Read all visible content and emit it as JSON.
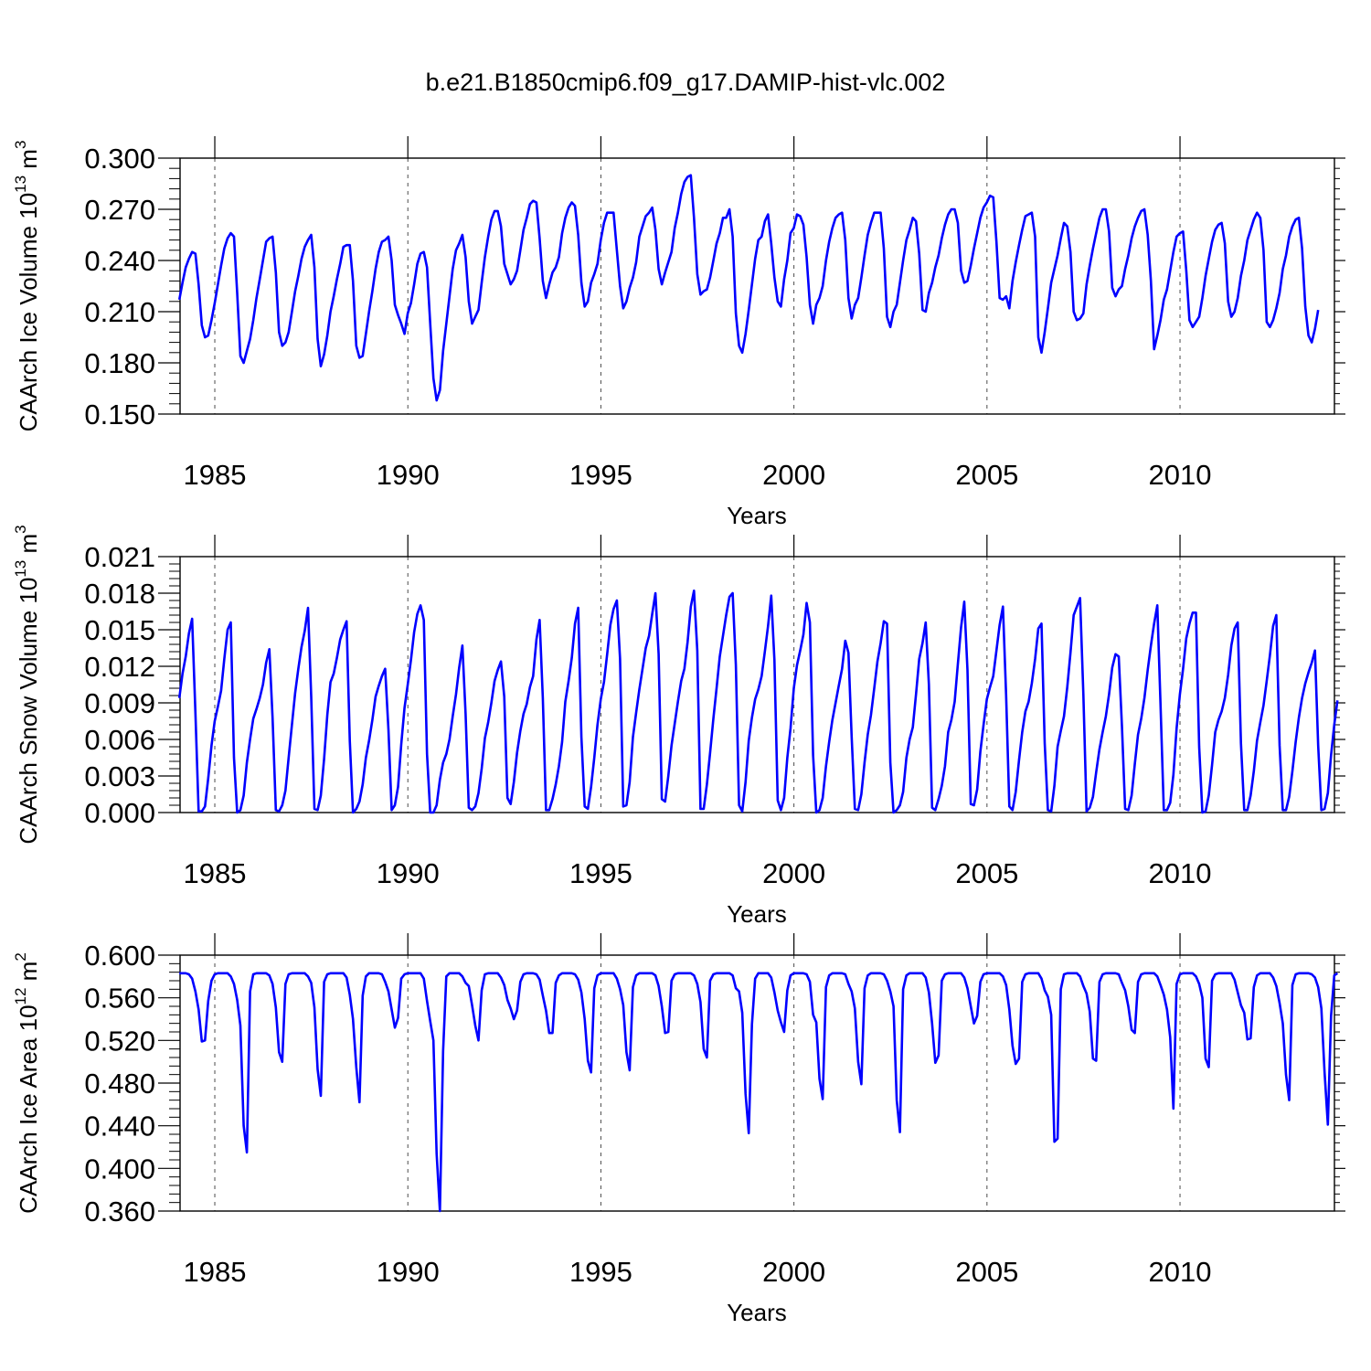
{
  "figure_title": "b.e21.B1850cmip6.f09_g17.DAMIP-hist-vlc.002",
  "colors": {
    "line": "#0000ff",
    "axes": "#000000",
    "grid": "#000000",
    "background": "#ffffff"
  },
  "chart_data": [
    {
      "type": "line",
      "name": "ice-volume",
      "ylabel": "CAArch Ice Volume",
      "ylabel_unit_base": "10",
      "ylabel_unit_exp": "13",
      "ylabel_unit_tail": "m",
      "ylabel_unit_tail_exp": "3",
      "xlabel": "Years",
      "ylim": [
        0.15,
        0.3
      ],
      "xlim": [
        1984.1,
        2014.0
      ],
      "yticks": [
        "0.150",
        "0.180",
        "0.210",
        "0.240",
        "0.270",
        "0.300"
      ],
      "xticks": [
        "1985",
        "1990",
        "1995",
        "2000",
        "2005",
        "2010"
      ],
      "vgrid_years": [
        1985,
        1990,
        1995,
        2000,
        2005,
        2010
      ],
      "series_start": 1984.08,
      "series_step": 0.08333,
      "values": [
        0.217,
        0.227,
        0.236,
        0.241,
        0.245,
        0.244,
        0.226,
        0.202,
        0.195,
        0.196,
        0.205,
        0.215,
        0.226,
        0.237,
        0.247,
        0.253,
        0.256,
        0.254,
        0.221,
        0.184,
        0.18,
        0.187,
        0.194,
        0.205,
        0.218,
        0.229,
        0.24,
        0.251,
        0.253,
        0.254,
        0.233,
        0.198,
        0.19,
        0.192,
        0.198,
        0.21,
        0.222,
        0.231,
        0.241,
        0.248,
        0.252,
        0.255,
        0.236,
        0.194,
        0.178,
        0.185,
        0.196,
        0.21,
        0.219,
        0.229,
        0.238,
        0.248,
        0.249,
        0.249,
        0.228,
        0.19,
        0.183,
        0.184,
        0.197,
        0.21,
        0.222,
        0.235,
        0.245,
        0.251,
        0.252,
        0.254,
        0.24,
        0.214,
        0.208,
        0.203,
        0.197,
        0.209,
        0.215,
        0.226,
        0.238,
        0.244,
        0.245,
        0.236,
        0.203,
        0.171,
        0.158,
        0.164,
        0.187,
        0.203,
        0.219,
        0.235,
        0.246,
        0.25,
        0.255,
        0.242,
        0.216,
        0.203,
        0.207,
        0.211,
        0.227,
        0.242,
        0.254,
        0.264,
        0.269,
        0.269,
        0.26,
        0.238,
        0.232,
        0.226,
        0.229,
        0.234,
        0.246,
        0.258,
        0.265,
        0.273,
        0.275,
        0.274,
        0.253,
        0.228,
        0.218,
        0.226,
        0.233,
        0.236,
        0.242,
        0.256,
        0.265,
        0.271,
        0.274,
        0.272,
        0.255,
        0.227,
        0.213,
        0.216,
        0.227,
        0.232,
        0.238,
        0.252,
        0.262,
        0.268,
        0.268,
        0.268,
        0.246,
        0.225,
        0.212,
        0.216,
        0.224,
        0.23,
        0.239,
        0.254,
        0.26,
        0.266,
        0.268,
        0.271,
        0.258,
        0.235,
        0.226,
        0.233,
        0.239,
        0.245,
        0.259,
        0.268,
        0.279,
        0.286,
        0.289,
        0.29,
        0.265,
        0.232,
        0.22,
        0.222,
        0.223,
        0.23,
        0.24,
        0.25,
        0.256,
        0.265,
        0.265,
        0.27,
        0.254,
        0.209,
        0.19,
        0.186,
        0.197,
        0.211,
        0.226,
        0.241,
        0.252,
        0.254,
        0.263,
        0.267,
        0.25,
        0.23,
        0.216,
        0.213,
        0.229,
        0.24,
        0.256,
        0.259,
        0.267,
        0.266,
        0.261,
        0.242,
        0.214,
        0.203,
        0.214,
        0.218,
        0.225,
        0.24,
        0.251,
        0.259,
        0.265,
        0.267,
        0.268,
        0.252,
        0.218,
        0.206,
        0.214,
        0.218,
        0.23,
        0.243,
        0.255,
        0.262,
        0.268,
        0.268,
        0.268,
        0.247,
        0.207,
        0.201,
        0.21,
        0.214,
        0.227,
        0.24,
        0.252,
        0.258,
        0.265,
        0.263,
        0.244,
        0.211,
        0.21,
        0.221,
        0.227,
        0.236,
        0.243,
        0.253,
        0.261,
        0.267,
        0.27,
        0.27,
        0.262,
        0.234,
        0.227,
        0.228,
        0.237,
        0.247,
        0.256,
        0.265,
        0.271,
        0.274,
        0.278,
        0.277,
        0.251,
        0.218,
        0.217,
        0.219,
        0.212,
        0.228,
        0.239,
        0.249,
        0.258,
        0.266,
        0.267,
        0.268,
        0.254,
        0.195,
        0.186,
        0.198,
        0.212,
        0.227,
        0.235,
        0.243,
        0.253,
        0.262,
        0.26,
        0.245,
        0.21,
        0.205,
        0.206,
        0.209,
        0.226,
        0.237,
        0.247,
        0.256,
        0.265,
        0.27,
        0.27,
        0.257,
        0.224,
        0.219,
        0.223,
        0.225,
        0.235,
        0.243,
        0.253,
        0.26,
        0.265,
        0.269,
        0.27,
        0.255,
        0.228,
        0.188,
        0.196,
        0.205,
        0.217,
        0.223,
        0.234,
        0.245,
        0.254,
        0.256,
        0.257,
        0.234,
        0.205,
        0.201,
        0.204,
        0.207,
        0.218,
        0.231,
        0.241,
        0.251,
        0.258,
        0.261,
        0.262,
        0.25,
        0.216,
        0.207,
        0.21,
        0.218,
        0.231,
        0.24,
        0.252,
        0.258,
        0.264,
        0.268,
        0.265,
        0.246,
        0.204,
        0.201,
        0.205,
        0.212,
        0.221,
        0.235,
        0.243,
        0.254,
        0.26,
        0.264,
        0.265,
        0.247,
        0.213,
        0.196,
        0.192,
        0.2,
        0.211
      ]
    },
    {
      "type": "line",
      "name": "snow-volume",
      "ylabel": "CAArch Snow Volume",
      "ylabel_unit_base": "10",
      "ylabel_unit_exp": "13",
      "ylabel_unit_tail": "m",
      "ylabel_unit_tail_exp": "3",
      "xlabel": "Years",
      "ylim": [
        0.0,
        0.021
      ],
      "xlim": [
        1984.1,
        2014.0
      ],
      "yticks": [
        "0.000",
        "0.003",
        "0.006",
        "0.009",
        "0.012",
        "0.015",
        "0.018",
        "0.021"
      ],
      "xticks": [
        "1985",
        "1990",
        "1995",
        "2000",
        "2005",
        "2010"
      ],
      "vgrid_years": [
        1985,
        1990,
        1995,
        2000,
        2005,
        2010
      ],
      "series_start": 1984.08,
      "series_step": 0.08333,
      "values": [
        0.0094,
        0.0114,
        0.0128,
        0.0147,
        0.0159,
        0.0082,
        0.0001,
        0.0001,
        0.0005,
        0.0028,
        0.0055,
        0.0075,
        0.0087,
        0.01,
        0.0126,
        0.015,
        0.0156,
        0.0045,
        0.0,
        0.0002,
        0.0014,
        0.0041,
        0.006,
        0.0077,
        0.0085,
        0.0094,
        0.0105,
        0.0123,
        0.0134,
        0.0078,
        0.0002,
        0.0001,
        0.0006,
        0.0018,
        0.0045,
        0.0072,
        0.0098,
        0.0118,
        0.0136,
        0.0149,
        0.0168,
        0.0095,
        0.0003,
        0.0002,
        0.0014,
        0.0044,
        0.008,
        0.0107,
        0.0114,
        0.0127,
        0.0142,
        0.015,
        0.0157,
        0.0059,
        0.0,
        0.0003,
        0.0009,
        0.0023,
        0.0045,
        0.0059,
        0.0076,
        0.0095,
        0.0104,
        0.0112,
        0.0118,
        0.0068,
        0.0002,
        0.0006,
        0.0021,
        0.0056,
        0.0086,
        0.0105,
        0.0125,
        0.0148,
        0.0163,
        0.017,
        0.0158,
        0.0048,
        0.0,
        0.0,
        0.0006,
        0.0027,
        0.0041,
        0.0048,
        0.006,
        0.0079,
        0.0097,
        0.0119,
        0.0137,
        0.0081,
        0.0004,
        0.0002,
        0.0005,
        0.0016,
        0.0036,
        0.0061,
        0.0074,
        0.009,
        0.0108,
        0.0117,
        0.0124,
        0.0095,
        0.0012,
        0.0007,
        0.0025,
        0.0049,
        0.0067,
        0.0081,
        0.0089,
        0.0103,
        0.0112,
        0.0142,
        0.0158,
        0.0094,
        0.0002,
        0.0002,
        0.0011,
        0.0023,
        0.0038,
        0.0058,
        0.0091,
        0.0108,
        0.0127,
        0.0155,
        0.0168,
        0.0062,
        0.0005,
        0.0003,
        0.0021,
        0.0045,
        0.0072,
        0.0093,
        0.0107,
        0.013,
        0.0154,
        0.0167,
        0.0174,
        0.0126,
        0.0005,
        0.0006,
        0.0025,
        0.0062,
        0.0082,
        0.0101,
        0.0118,
        0.0135,
        0.0145,
        0.0163,
        0.018,
        0.013,
        0.0011,
        0.0009,
        0.003,
        0.0055,
        0.0073,
        0.0091,
        0.0108,
        0.0118,
        0.014,
        0.0169,
        0.0182,
        0.0133,
        0.0003,
        0.0003,
        0.0023,
        0.0049,
        0.0077,
        0.0102,
        0.0128,
        0.0145,
        0.0162,
        0.0177,
        0.018,
        0.0121,
        0.0006,
        0.0001,
        0.0025,
        0.0059,
        0.0078,
        0.0093,
        0.0101,
        0.0112,
        0.0132,
        0.0153,
        0.0178,
        0.0125,
        0.001,
        0.0002,
        0.0012,
        0.0045,
        0.0069,
        0.0102,
        0.0121,
        0.0133,
        0.0146,
        0.0172,
        0.0156,
        0.0047,
        0.0,
        0.0002,
        0.0012,
        0.0038,
        0.0058,
        0.0076,
        0.009,
        0.0104,
        0.0118,
        0.0141,
        0.0131,
        0.0062,
        0.0003,
        0.0002,
        0.0015,
        0.0041,
        0.0064,
        0.008,
        0.0102,
        0.0124,
        0.0139,
        0.0157,
        0.0155,
        0.0041,
        0.0,
        0.0002,
        0.0006,
        0.0017,
        0.0045,
        0.006,
        0.007,
        0.0097,
        0.0126,
        0.0139,
        0.0156,
        0.0105,
        0.0004,
        0.0002,
        0.0011,
        0.0022,
        0.0038,
        0.0066,
        0.0076,
        0.0091,
        0.0122,
        0.0152,
        0.0173,
        0.0117,
        0.0007,
        0.0006,
        0.0019,
        0.005,
        0.0072,
        0.0093,
        0.0103,
        0.0112,
        0.0133,
        0.0154,
        0.0169,
        0.0096,
        0.0005,
        0.0002,
        0.0017,
        0.0043,
        0.0066,
        0.0083,
        0.0091,
        0.0106,
        0.0126,
        0.0151,
        0.0155,
        0.0057,
        0.0002,
        0.0001,
        0.0022,
        0.0054,
        0.0067,
        0.0079,
        0.0103,
        0.0131,
        0.0162,
        0.0169,
        0.0176,
        0.0097,
        0.0001,
        0.0004,
        0.0013,
        0.0033,
        0.0052,
        0.0066,
        0.0079,
        0.0097,
        0.0119,
        0.013,
        0.0128,
        0.0071,
        0.0003,
        0.0002,
        0.0014,
        0.004,
        0.0064,
        0.0077,
        0.0094,
        0.0117,
        0.0137,
        0.0155,
        0.017,
        0.0089,
        0.0002,
        0.0002,
        0.0008,
        0.0031,
        0.0069,
        0.0097,
        0.0118,
        0.0143,
        0.0155,
        0.0164,
        0.0164,
        0.0054,
        0.0,
        0.0001,
        0.0014,
        0.0039,
        0.0066,
        0.0076,
        0.0083,
        0.0094,
        0.0113,
        0.0137,
        0.0151,
        0.0156,
        0.0057,
        0.0002,
        0.0002,
        0.0014,
        0.0034,
        0.0059,
        0.0074,
        0.0088,
        0.0108,
        0.0129,
        0.0153,
        0.0162,
        0.0055,
        0.0002,
        0.0002,
        0.0013,
        0.0034,
        0.0058,
        0.0078,
        0.0094,
        0.0106,
        0.0115,
        0.0123,
        0.0133,
        0.0055,
        0.0002,
        0.0003,
        0.0016,
        0.0047,
        0.0072,
        0.0092
      ]
    },
    {
      "type": "line",
      "name": "ice-area",
      "ylabel": "CAArch Ice Area",
      "ylabel_unit_base": "10",
      "ylabel_unit_exp": "12",
      "ylabel_unit_tail": "m",
      "ylabel_unit_tail_exp": "2",
      "xlabel": "Years",
      "ylim": [
        0.36,
        0.6
      ],
      "xlim": [
        1984.1,
        2014.0
      ],
      "yticks": [
        "0.360",
        "0.400",
        "0.440",
        "0.480",
        "0.520",
        "0.560",
        "0.600"
      ],
      "xticks": [
        "1985",
        "1990",
        "1995",
        "2000",
        "2005",
        "2010"
      ],
      "vgrid_years": [
        1985,
        1990,
        1995,
        2000,
        2005,
        2010
      ],
      "series_start": 1984.08,
      "series_step": 0.08333,
      "values": [
        0.583,
        0.583,
        0.583,
        0.582,
        0.578,
        0.566,
        0.549,
        0.519,
        0.52,
        0.557,
        0.576,
        0.582,
        0.583,
        0.583,
        0.583,
        0.583,
        0.58,
        0.573,
        0.558,
        0.534,
        0.44,
        0.415,
        0.566,
        0.582,
        0.583,
        0.583,
        0.583,
        0.583,
        0.581,
        0.573,
        0.551,
        0.509,
        0.5,
        0.573,
        0.582,
        0.583,
        0.583,
        0.583,
        0.583,
        0.583,
        0.58,
        0.574,
        0.551,
        0.493,
        0.468,
        0.575,
        0.582,
        0.583,
        0.583,
        0.583,
        0.583,
        0.583,
        0.579,
        0.563,
        0.54,
        0.495,
        0.462,
        0.562,
        0.58,
        0.583,
        0.583,
        0.583,
        0.583,
        0.582,
        0.575,
        0.566,
        0.549,
        0.532,
        0.541,
        0.578,
        0.582,
        0.583,
        0.583,
        0.583,
        0.583,
        0.583,
        0.578,
        0.557,
        0.538,
        0.52,
        0.414,
        0.36,
        0.51,
        0.58,
        0.583,
        0.583,
        0.583,
        0.583,
        0.58,
        0.574,
        0.571,
        0.553,
        0.534,
        0.52,
        0.567,
        0.582,
        0.583,
        0.583,
        0.583,
        0.583,
        0.579,
        0.572,
        0.558,
        0.55,
        0.54,
        0.548,
        0.575,
        0.582,
        0.583,
        0.583,
        0.583,
        0.582,
        0.577,
        0.562,
        0.548,
        0.527,
        0.527,
        0.574,
        0.581,
        0.583,
        0.583,
        0.583,
        0.583,
        0.582,
        0.577,
        0.565,
        0.54,
        0.501,
        0.49,
        0.569,
        0.581,
        0.583,
        0.583,
        0.583,
        0.583,
        0.583,
        0.578,
        0.568,
        0.553,
        0.509,
        0.492,
        0.57,
        0.581,
        0.583,
        0.583,
        0.583,
        0.583,
        0.583,
        0.581,
        0.571,
        0.552,
        0.527,
        0.528,
        0.576,
        0.582,
        0.583,
        0.583,
        0.583,
        0.583,
        0.583,
        0.581,
        0.573,
        0.556,
        0.512,
        0.504,
        0.576,
        0.582,
        0.583,
        0.583,
        0.583,
        0.583,
        0.583,
        0.581,
        0.569,
        0.566,
        0.546,
        0.47,
        0.433,
        0.535,
        0.578,
        0.583,
        0.583,
        0.583,
        0.583,
        0.579,
        0.565,
        0.548,
        0.537,
        0.528,
        0.567,
        0.581,
        0.583,
        0.583,
        0.583,
        0.583,
        0.582,
        0.575,
        0.544,
        0.537,
        0.484,
        0.465,
        0.57,
        0.581,
        0.583,
        0.583,
        0.583,
        0.583,
        0.582,
        0.573,
        0.566,
        0.55,
        0.5,
        0.479,
        0.569,
        0.581,
        0.583,
        0.583,
        0.583,
        0.583,
        0.582,
        0.576,
        0.566,
        0.552,
        0.464,
        0.434,
        0.568,
        0.581,
        0.583,
        0.583,
        0.583,
        0.583,
        0.583,
        0.579,
        0.565,
        0.536,
        0.499,
        0.506,
        0.576,
        0.582,
        0.583,
        0.583,
        0.583,
        0.583,
        0.583,
        0.579,
        0.569,
        0.552,
        0.536,
        0.543,
        0.575,
        0.582,
        0.583,
        0.583,
        0.583,
        0.583,
        0.583,
        0.58,
        0.572,
        0.549,
        0.515,
        0.498,
        0.503,
        0.575,
        0.582,
        0.583,
        0.583,
        0.583,
        0.583,
        0.578,
        0.567,
        0.561,
        0.544,
        0.425,
        0.428,
        0.568,
        0.582,
        0.583,
        0.583,
        0.583,
        0.583,
        0.58,
        0.571,
        0.564,
        0.547,
        0.503,
        0.501,
        0.575,
        0.582,
        0.583,
        0.583,
        0.583,
        0.583,
        0.582,
        0.574,
        0.567,
        0.552,
        0.53,
        0.527,
        0.575,
        0.582,
        0.583,
        0.583,
        0.583,
        0.583,
        0.58,
        0.572,
        0.563,
        0.549,
        0.523,
        0.456,
        0.573,
        0.582,
        0.583,
        0.583,
        0.583,
        0.583,
        0.58,
        0.573,
        0.56,
        0.503,
        0.495,
        0.576,
        0.582,
        0.583,
        0.583,
        0.583,
        0.583,
        0.583,
        0.577,
        0.565,
        0.553,
        0.546,
        0.521,
        0.522,
        0.57,
        0.581,
        0.583,
        0.583,
        0.583,
        0.583,
        0.579,
        0.571,
        0.555,
        0.536,
        0.488,
        0.464,
        0.572,
        0.582,
        0.583,
        0.583,
        0.583,
        0.583,
        0.582,
        0.579,
        0.57,
        0.55,
        0.49,
        0.441,
        0.543,
        0.581,
        0.583
      ]
    }
  ]
}
